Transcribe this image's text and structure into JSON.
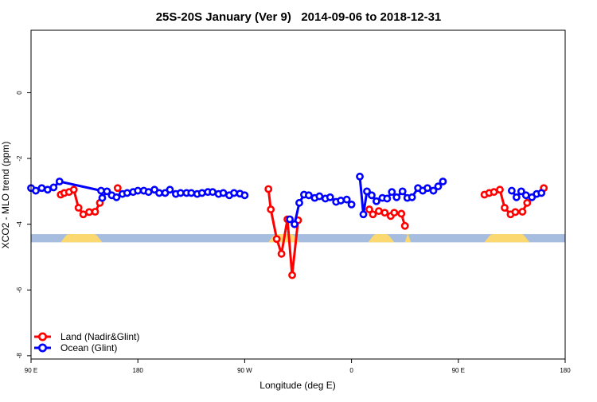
{
  "chart_data": {
    "type": "line",
    "title": "25S-20S January (Ver 9)   2014-09-06 to 2018-12-31",
    "xlabel": "Longitude (deg E)",
    "ylabel": "XCO2 - MLO trend (ppm)",
    "xlim": [
      90,
      540
    ],
    "ylim": [
      -8.1,
      1.9
    ],
    "x_ticks": [
      {
        "value": 90,
        "label": "90 E"
      },
      {
        "value": 180,
        "label": "180"
      },
      {
        "value": 270,
        "label": "90 W"
      },
      {
        "value": 360,
        "label": "0"
      },
      {
        "value": 450,
        "label": "90 E"
      },
      {
        "value": 540,
        "label": "180"
      }
    ],
    "y_ticks": [
      {
        "value": 0,
        "label": "0"
      },
      {
        "value": -2,
        "label": "-2"
      },
      {
        "value": -4,
        "label": "-4"
      },
      {
        "value": -6,
        "label": "-6"
      },
      {
        "value": -8,
        "label": "-8"
      }
    ],
    "legend_position": "bottom-left",
    "series": [
      {
        "name": "Land (Nadir&Glint)",
        "color": "#ff0000",
        "segments": [
          [
            [
              115,
              -3.1
            ],
            [
              118,
              -3.05
            ],
            [
              122,
              -3.02
            ],
            [
              126,
              -2.95
            ],
            [
              130,
              -3.5
            ],
            [
              134,
              -3.7
            ],
            [
              139,
              -3.63
            ],
            [
              144,
              -3.62
            ],
            [
              148,
              -3.35
            ]
          ],
          [
            [
              163,
              -2.9
            ]
          ],
          [
            [
              290,
              -2.93
            ],
            [
              292,
              -3.55
            ],
            [
              297,
              -4.45
            ],
            [
              301,
              -4.9
            ],
            [
              306,
              -3.85
            ],
            [
              310,
              -5.55
            ],
            [
              315,
              -3.88
            ]
          ],
          [
            [
              375,
              -3.55
            ],
            [
              378,
              -3.7
            ],
            [
              383,
              -3.6
            ],
            [
              388,
              -3.65
            ],
            [
              393,
              -3.75
            ],
            [
              396,
              -3.65
            ],
            [
              402,
              -3.68
            ],
            [
              405,
              -4.05
            ]
          ],
          [
            [
              472,
              -3.1
            ],
            [
              476,
              -3.05
            ],
            [
              480,
              -3.02
            ],
            [
              485,
              -2.95
            ],
            [
              489,
              -3.5
            ],
            [
              494,
              -3.7
            ],
            [
              498,
              -3.63
            ],
            [
              504,
              -3.62
            ],
            [
              508,
              -3.35
            ]
          ],
          [
            [
              522,
              -2.9
            ]
          ]
        ]
      },
      {
        "name": "Ocean (Glint)",
        "color": "#0000ff",
        "segments": [
          [
            [
              90,
              -2.9
            ],
            [
              94,
              -2.98
            ],
            [
              99,
              -2.9
            ],
            [
              104,
              -2.95
            ],
            [
              109,
              -2.88
            ],
            [
              114,
              -2.7
            ],
            [
              149,
              -2.98
            ]
          ],
          [
            [
              150,
              -3.2
            ],
            [
              154,
              -3.0
            ],
            [
              158,
              -3.12
            ],
            [
              162,
              -3.18
            ],
            [
              167,
              -3.08
            ],
            [
              171,
              -3.05
            ],
            [
              176,
              -3.02
            ],
            [
              180,
              -2.98
            ],
            [
              185,
              -2.98
            ],
            [
              189,
              -3.02
            ],
            [
              194,
              -2.95
            ],
            [
              198,
              -3.05
            ],
            [
              203,
              -3.05
            ],
            [
              207,
              -2.95
            ],
            [
              212,
              -3.08
            ],
            [
              216,
              -3.05
            ],
            [
              221,
              -3.05
            ],
            [
              225,
              -3.05
            ],
            [
              230,
              -3.08
            ],
            [
              234,
              -3.05
            ],
            [
              239,
              -3.02
            ],
            [
              243,
              -3.02
            ],
            [
              248,
              -3.08
            ],
            [
              252,
              -3.05
            ],
            [
              257,
              -3.12
            ],
            [
              261,
              -3.05
            ],
            [
              266,
              -3.07
            ],
            [
              270,
              -3.12
            ]
          ],
          [
            [
              308,
              -3.85
            ],
            [
              312,
              -4.0
            ],
            [
              316,
              -3.35
            ],
            [
              320,
              -3.1
            ],
            [
              324,
              -3.12
            ],
            [
              329,
              -3.2
            ],
            [
              333,
              -3.15
            ],
            [
              338,
              -3.22
            ],
            [
              342,
              -3.18
            ],
            [
              347,
              -3.32
            ],
            [
              351,
              -3.28
            ],
            [
              356,
              -3.25
            ],
            [
              360,
              -3.4
            ]
          ],
          [
            [
              367,
              -2.55
            ],
            [
              370,
              -3.7
            ],
            [
              373,
              -3.0
            ],
            [
              377,
              -3.12
            ],
            [
              381,
              -3.3
            ],
            [
              386,
              -3.2
            ],
            [
              390,
              -3.22
            ],
            [
              394,
              -3.02
            ],
            [
              398,
              -3.18
            ],
            [
              403,
              -3.0
            ],
            [
              407,
              -3.2
            ],
            [
              411,
              -3.18
            ],
            [
              416,
              -2.9
            ],
            [
              420,
              -2.98
            ],
            [
              424,
              -2.9
            ],
            [
              429,
              -2.98
            ],
            [
              433,
              -2.85
            ],
            [
              437,
              -2.7
            ]
          ],
          [
            [
              495,
              -2.98
            ],
            [
              499,
              -3.18
            ],
            [
              503,
              -3.0
            ],
            [
              507,
              -3.12
            ],
            [
              512,
              -3.18
            ],
            [
              516,
              -3.08
            ],
            [
              520,
              -3.05
            ]
          ]
        ]
      }
    ],
    "latitude_band": {
      "y_range": [
        -4.55,
        -4.3
      ],
      "ocean_color": "#a7bde0",
      "land_color": "#fcd870",
      "land_x_ranges": [
        [
          115,
          150
        ],
        [
          290,
          316
        ],
        [
          374,
          396
        ],
        [
          405,
          410
        ],
        [
          472,
          510
        ]
      ]
    }
  }
}
